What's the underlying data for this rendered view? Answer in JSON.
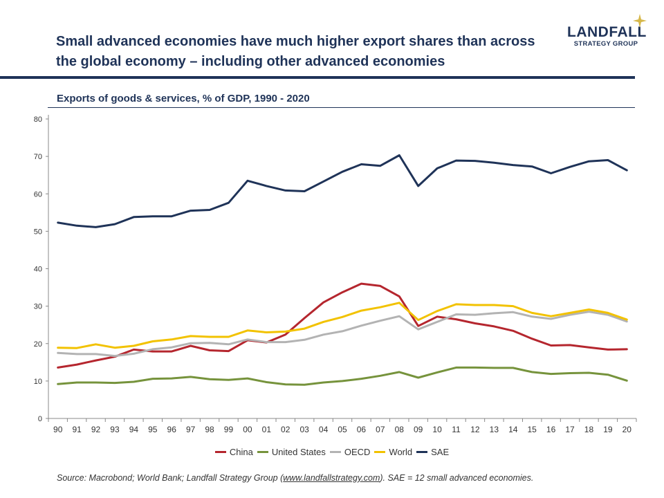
{
  "header": {
    "title_line1": "Small advanced economies have much higher export shares than across",
    "title_line2": "the global economy – including other advanced economies",
    "logo_name": "LANDFALL",
    "logo_sub": "STRATEGY GROUP"
  },
  "footer": {
    "source_pre": "Source: Macrobond; World Bank; Landfall Strategy Group (",
    "source_link": "www.landfallstrategy.com",
    "source_post": "). SAE = 12 small advanced economies."
  },
  "colors": {
    "brand_navy": "#1f3358",
    "logo_star": "#d6b84a"
  },
  "chart_data": {
    "type": "line",
    "title": "Exports of goods & services, % of GDP, 1990 - 2020",
    "xlabel": "",
    "ylabel": "",
    "categories": [
      "90",
      "91",
      "92",
      "93",
      "94",
      "95",
      "96",
      "97",
      "98",
      "99",
      "00",
      "01",
      "02",
      "03",
      "04",
      "05",
      "06",
      "07",
      "08",
      "09",
      "10",
      "11",
      "12",
      "13",
      "14",
      "15",
      "16",
      "17",
      "18",
      "19",
      "20"
    ],
    "ylim": [
      0,
      80
    ],
    "yticks": [
      0,
      10,
      20,
      30,
      40,
      50,
      60,
      70,
      80
    ],
    "grid": false,
    "legend_position": "bottom",
    "series": [
      {
        "name": "China",
        "color": "#b5262e",
        "values": [
          13.6,
          14.4,
          15.5,
          16.5,
          18.4,
          17.9,
          17.9,
          19.4,
          18.2,
          18.0,
          20.9,
          20.3,
          22.4,
          26.8,
          31.0,
          33.7,
          36.0,
          35.4,
          32.6,
          24.7,
          27.2,
          26.5,
          25.4,
          24.6,
          23.4,
          21.3,
          19.5,
          19.6,
          19.0,
          18.4,
          18.5
        ]
      },
      {
        "name": "United States",
        "color": "#76933c",
        "values": [
          9.2,
          9.6,
          9.6,
          9.5,
          9.8,
          10.6,
          10.7,
          11.1,
          10.5,
          10.3,
          10.7,
          9.7,
          9.1,
          9.0,
          9.6,
          10.0,
          10.6,
          11.4,
          12.4,
          10.9,
          12.3,
          13.6,
          13.6,
          13.5,
          13.5,
          12.4,
          11.9,
          12.1,
          12.2,
          11.7,
          10.1
        ]
      },
      {
        "name": "OECD",
        "color": "#b3b3b3",
        "values": [
          17.5,
          17.2,
          17.2,
          16.7,
          17.3,
          18.5,
          19.0,
          20.1,
          20.2,
          19.8,
          21.1,
          20.4,
          20.4,
          21.0,
          22.4,
          23.3,
          24.8,
          26.1,
          27.3,
          23.8,
          25.8,
          27.8,
          27.7,
          28.1,
          28.4,
          27.2,
          26.6,
          27.7,
          28.5,
          27.7,
          25.9
        ]
      },
      {
        "name": "World",
        "color": "#f2c200",
        "values": [
          18.9,
          18.8,
          19.8,
          18.9,
          19.4,
          20.6,
          21.1,
          22.0,
          21.8,
          21.8,
          23.5,
          23.0,
          23.2,
          24.0,
          25.8,
          27.1,
          28.8,
          29.7,
          30.9,
          26.3,
          28.7,
          30.5,
          30.3,
          30.3,
          30.0,
          28.2,
          27.3,
          28.2,
          29.1,
          28.2,
          26.4
        ]
      },
      {
        "name": "SAE",
        "color": "#1f3358",
        "values": [
          52.3,
          51.5,
          51.1,
          51.9,
          53.8,
          54.0,
          54.0,
          55.5,
          55.7,
          57.6,
          63.5,
          62.1,
          60.9,
          60.7,
          63.3,
          65.9,
          67.9,
          67.5,
          70.3,
          62.1,
          66.8,
          68.9,
          68.8,
          68.3,
          67.7,
          67.3,
          65.5,
          67.2,
          68.7,
          69.0,
          66.3
        ]
      }
    ]
  }
}
